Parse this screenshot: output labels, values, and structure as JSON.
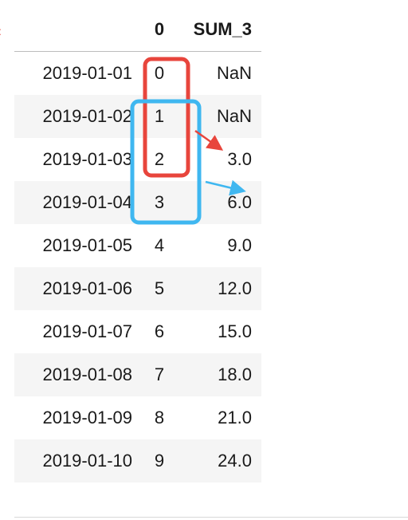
{
  "table": {
    "columns": [
      "0",
      "SUM_3"
    ],
    "rows": [
      {
        "index": "2019-01-01",
        "c0": "0",
        "sum3": "NaN"
      },
      {
        "index": "2019-01-02",
        "c0": "1",
        "sum3": "NaN"
      },
      {
        "index": "2019-01-03",
        "c0": "2",
        "sum3": "3.0"
      },
      {
        "index": "2019-01-04",
        "c0": "3",
        "sum3": "6.0"
      },
      {
        "index": "2019-01-05",
        "c0": "4",
        "sum3": "9.0"
      },
      {
        "index": "2019-01-06",
        "c0": "5",
        "sum3": "12.0"
      },
      {
        "index": "2019-01-07",
        "c0": "6",
        "sum3": "15.0"
      },
      {
        "index": "2019-01-08",
        "c0": "7",
        "sum3": "18.0"
      },
      {
        "index": "2019-01-09",
        "c0": "8",
        "sum3": "21.0"
      },
      {
        "index": "2019-01-10",
        "c0": "9",
        "sum3": "24.0"
      }
    ]
  },
  "annotations": {
    "red_color": "#e8453c",
    "blue_color": "#3fb7f0"
  }
}
